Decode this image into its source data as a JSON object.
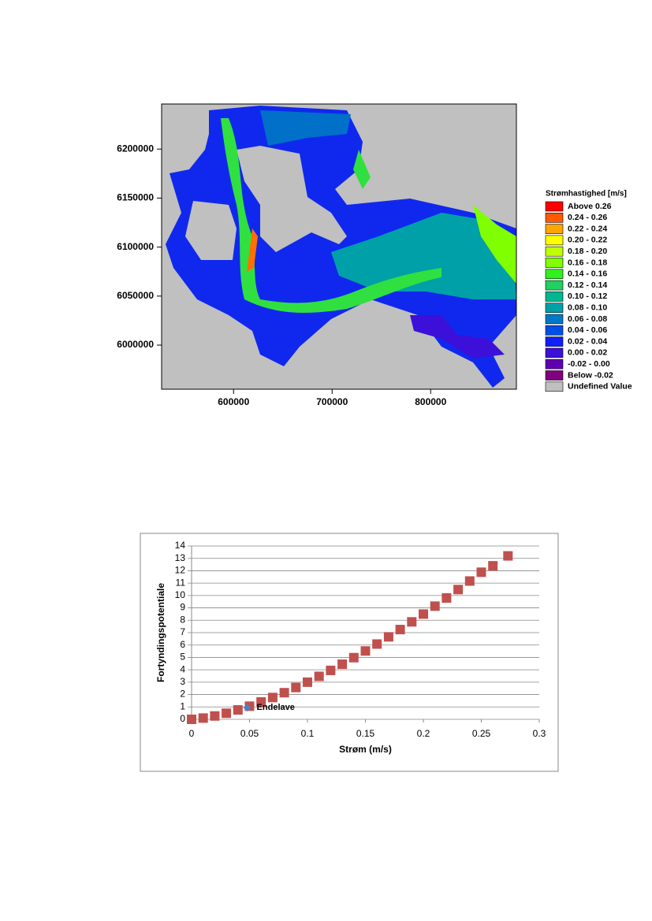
{
  "chart_data": [
    {
      "type": "contour",
      "xlim": [
        527000,
        887000
      ],
      "xticks": [
        600000,
        700000,
        800000
      ],
      "ylim": [
        5955000,
        6246000
      ],
      "yticks": [
        6000000,
        6050000,
        6100000,
        6150000,
        6200000
      ],
      "legend_title": "Strømhastighed [m/s]",
      "legend": [
        {
          "label": "Above 0.26",
          "color": "#ff0000"
        },
        {
          "label": "0.24 - 0.26",
          "color": "#ff5a00"
        },
        {
          "label": "0.22 - 0.24",
          "color": "#ffa500"
        },
        {
          "label": "0.20 - 0.22",
          "color": "#ffff00"
        },
        {
          "label": "0.18 - 0.20",
          "color": "#c0ff00"
        },
        {
          "label": "0.16 - 0.18",
          "color": "#80ff00"
        },
        {
          "label": "0.14 - 0.16",
          "color": "#30f020"
        },
        {
          "label": "0.12 - 0.14",
          "color": "#20d060"
        },
        {
          "label": "0.10 - 0.12",
          "color": "#00b890"
        },
        {
          "label": "0.08 - 0.10",
          "color": "#00a0a8"
        },
        {
          "label": "0.06 - 0.08",
          "color": "#0078c8"
        },
        {
          "label": "0.04 - 0.06",
          "color": "#0050e8"
        },
        {
          "label": "0.02 - 0.04",
          "color": "#1020ff"
        },
        {
          "label": "0.00 - 0.02",
          "color": "#3c10d8"
        },
        {
          "label": "-0.02 - 0.00",
          "color": "#6000b0"
        },
        {
          "label": "Below -0.02",
          "color": "#800080"
        },
        {
          "label": "Undefined Value",
          "color": "#c0c0c0"
        }
      ]
    },
    {
      "type": "scatter",
      "xlabel": "Strøm (m/s)",
      "ylabel": "Fortyndingspotentiale",
      "xlim": [
        0,
        0.3
      ],
      "xticks": [
        0,
        0.05,
        0.1,
        0.15,
        0.2,
        0.25,
        0.3
      ],
      "ylim": [
        0,
        14
      ],
      "yticks": [
        0,
        1,
        2,
        3,
        4,
        5,
        6,
        7,
        8,
        9,
        10,
        11,
        12,
        13,
        14
      ],
      "grid": true,
      "series": [
        {
          "color": "#c0504d",
          "x": [
            0,
            0.01,
            0.02,
            0.03,
            0.04,
            0.05,
            0.06,
            0.07,
            0.08,
            0.09,
            0.1,
            0.11,
            0.12,
            0.13,
            0.14,
            0.15,
            0.16,
            0.17,
            0.18,
            0.19,
            0.2,
            0.21,
            0.22,
            0.23,
            0.24,
            0.25,
            0.26,
            0.273
          ],
          "values": [
            0,
            0.1,
            0.27,
            0.49,
            0.76,
            1.06,
            1.4,
            1.76,
            2.15,
            2.57,
            3,
            3.47,
            3.95,
            4.45,
            4.98,
            5.52,
            6.08,
            6.66,
            7.25,
            7.87,
            8.5,
            9.14,
            9.8,
            10.48,
            11.17,
            11.88,
            12.4,
            13.2
          ]
        },
        {
          "name": "Endelave",
          "color": "#4f81bd",
          "x": [
            0.048
          ],
          "values": [
            0.95
          ]
        }
      ]
    }
  ]
}
